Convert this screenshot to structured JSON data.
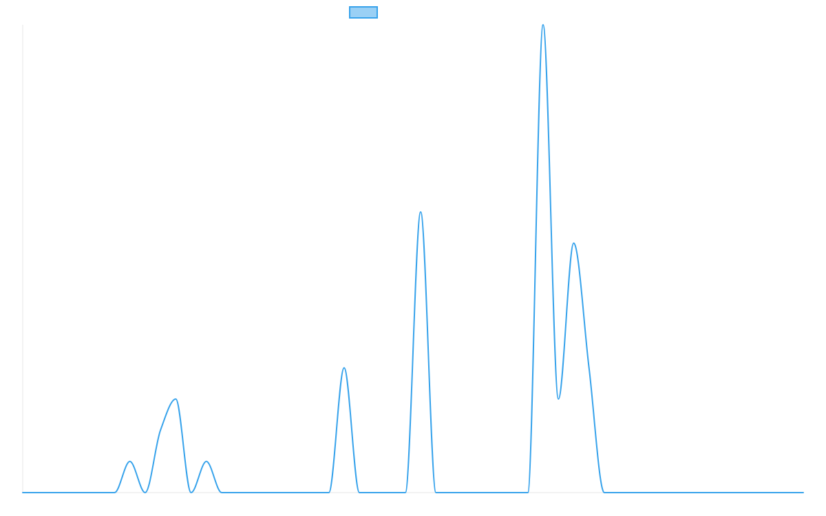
{
  "chart_data": {
    "type": "line",
    "title": "",
    "xlabel": "",
    "ylabel": "",
    "grid": false,
    "legend": {
      "position": "top-center",
      "entries": [
        {
          "name": "",
          "swatch": "filled-rectangle"
        }
      ]
    },
    "xlim": [
      0,
      51
    ],
    "ylim": [
      0,
      15
    ],
    "colors": {
      "line": "#36a2eb",
      "legend_fill": "#9ad0f5",
      "axis": "#e5e5e5",
      "background": "#ffffff"
    },
    "series": [
      {
        "name": "",
        "x": [
          0,
          1,
          2,
          3,
          4,
          5,
          6,
          7,
          8,
          9,
          10,
          11,
          12,
          13,
          14,
          15,
          16,
          17,
          18,
          19,
          20,
          21,
          22,
          23,
          24,
          25,
          26,
          27,
          28,
          29,
          30,
          31,
          32,
          33,
          34,
          35,
          36,
          37,
          38,
          39,
          40,
          41,
          42,
          43,
          44,
          45,
          46,
          47,
          48,
          49,
          50,
          51
        ],
        "y": [
          0,
          0,
          0,
          0,
          0,
          0,
          0,
          1,
          0,
          2,
          3,
          0,
          1,
          0,
          0,
          0,
          0,
          0,
          0,
          0,
          0,
          4,
          0,
          0,
          0,
          0,
          9,
          0,
          0,
          0,
          0,
          0,
          0,
          0,
          15,
          3,
          8,
          4,
          0,
          0,
          0,
          0,
          0,
          0,
          0,
          0,
          0,
          0,
          0,
          0,
          0,
          0
        ]
      }
    ]
  }
}
